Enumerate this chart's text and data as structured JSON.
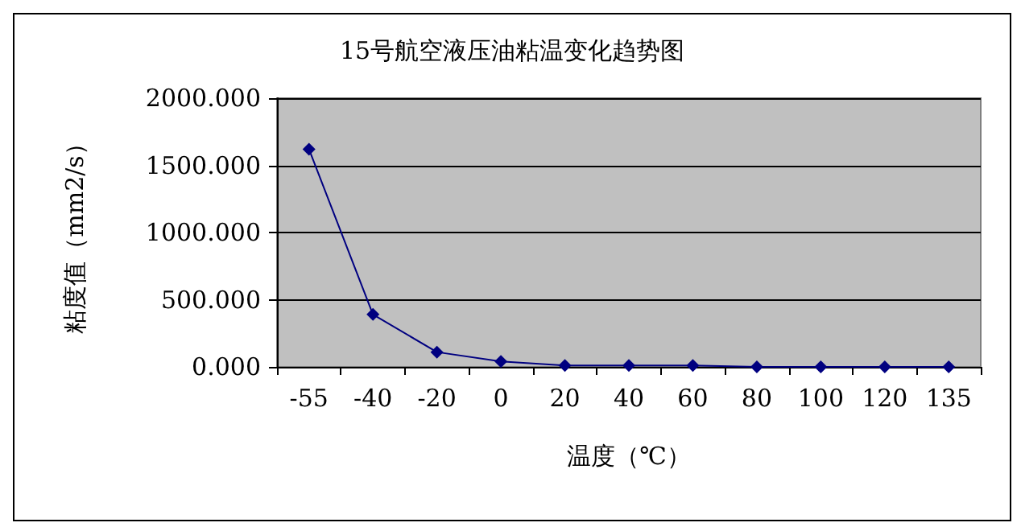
{
  "chart_data": {
    "type": "line",
    "title": "15号航空液压油粘温变化趋势图",
    "xlabel": "温度（℃）",
    "ylabel": "粘度值（mm2/s）",
    "categories": [
      "-55",
      "-40",
      "-20",
      "0",
      "20",
      "40",
      "60",
      "80",
      "100",
      "120",
      "135"
    ],
    "series": [
      {
        "color": "#000080",
        "values": [
          1620,
          390,
          110,
          40,
          10,
          10,
          10,
          0,
          0,
          0,
          0
        ]
      }
    ],
    "ylim": [
      0,
      2000
    ],
    "yticks": [
      {
        "value": 0,
        "label": "0.000"
      },
      {
        "value": 500,
        "label": "500.000"
      },
      {
        "value": 1000,
        "label": "1000.000"
      },
      {
        "value": 1500,
        "label": "1500.000"
      },
      {
        "value": 2000,
        "label": "2000.000"
      }
    ],
    "grid": "y",
    "marker": "diamond",
    "line_style": "solid"
  }
}
